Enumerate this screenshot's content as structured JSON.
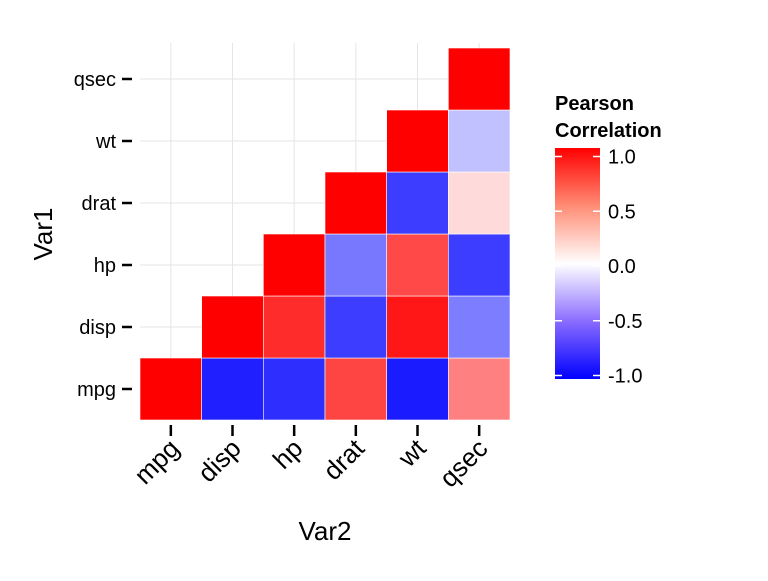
{
  "chart_data": {
    "type": "heatmap",
    "title": "",
    "xlabel": "Var2",
    "ylabel": "Var1",
    "variables": [
      "mpg",
      "disp",
      "hp",
      "drat",
      "wt",
      "qsec"
    ],
    "cells": [
      {
        "var1": "mpg",
        "var2": "mpg",
        "value": 1.0
      },
      {
        "var1": "mpg",
        "var2": "disp",
        "value": -0.85
      },
      {
        "var1": "mpg",
        "var2": "hp",
        "value": -0.78
      },
      {
        "var1": "mpg",
        "var2": "drat",
        "value": 0.68
      },
      {
        "var1": "mpg",
        "var2": "wt",
        "value": -0.87
      },
      {
        "var1": "mpg",
        "var2": "qsec",
        "value": 0.42
      },
      {
        "var1": "disp",
        "var2": "disp",
        "value": 1.0
      },
      {
        "var1": "disp",
        "var2": "hp",
        "value": 0.79
      },
      {
        "var1": "disp",
        "var2": "drat",
        "value": -0.71
      },
      {
        "var1": "disp",
        "var2": "wt",
        "value": 0.89
      },
      {
        "var1": "disp",
        "var2": "qsec",
        "value": -0.43
      },
      {
        "var1": "hp",
        "var2": "hp",
        "value": 1.0
      },
      {
        "var1": "hp",
        "var2": "drat",
        "value": -0.45
      },
      {
        "var1": "hp",
        "var2": "wt",
        "value": 0.66
      },
      {
        "var1": "hp",
        "var2": "qsec",
        "value": -0.71
      },
      {
        "var1": "drat",
        "var2": "drat",
        "value": 1.0
      },
      {
        "var1": "drat",
        "var2": "wt",
        "value": -0.71
      },
      {
        "var1": "drat",
        "var2": "qsec",
        "value": 0.09
      },
      {
        "var1": "wt",
        "var2": "wt",
        "value": 1.0
      },
      {
        "var1": "wt",
        "var2": "qsec",
        "value": -0.17
      },
      {
        "var1": "qsec",
        "var2": "qsec",
        "value": 1.0
      }
    ],
    "color_scale": {
      "low": "#0000FF",
      "mid": "#FFFFFF",
      "high": "#FF0000",
      "limits": [
        -1,
        1
      ],
      "midpoint": 0
    },
    "legend": {
      "title_line1": "Pearson",
      "title_line2": "Correlation",
      "ticks": [
        1.0,
        0.5,
        0.0,
        -0.5,
        -1.0
      ],
      "tick_labels": [
        "1.0",
        "0.5",
        "0.0",
        "-0.5",
        "-1.0"
      ],
      "placement": "right"
    },
    "grid": true
  }
}
